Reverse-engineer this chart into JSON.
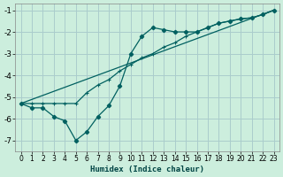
{
  "xlabel": "Humidex (Indice chaleur)",
  "bg_color": "#cceedd",
  "grid_color": "#aacccc",
  "line_color": "#006060",
  "xlim": [
    -0.5,
    23.5
  ],
  "ylim": [
    -7.5,
    -0.7
  ],
  "yticks": [
    -7,
    -6,
    -5,
    -4,
    -3,
    -2,
    -1
  ],
  "xticks": [
    0,
    1,
    2,
    3,
    4,
    5,
    6,
    7,
    8,
    9,
    10,
    11,
    12,
    13,
    14,
    15,
    16,
    17,
    18,
    19,
    20,
    21,
    22,
    23
  ],
  "line1_x": [
    0,
    1,
    2,
    3,
    4,
    5,
    6,
    7,
    8,
    9,
    10,
    11,
    12,
    13,
    14,
    15,
    16,
    17,
    18,
    19,
    20,
    21,
    22,
    23
  ],
  "line1_y": [
    -5.3,
    -5.5,
    -5.5,
    -5.9,
    -6.1,
    -7.0,
    -6.6,
    -5.9,
    -5.4,
    -4.5,
    -3.0,
    -2.2,
    -1.8,
    -1.9,
    -2.0,
    -2.0,
    -2.0,
    -1.8,
    -1.6,
    -1.5,
    -1.4,
    -1.35,
    -1.2,
    -1.0
  ],
  "line2_x": [
    0,
    1,
    2,
    3,
    4,
    5,
    6,
    7,
    8,
    9,
    10,
    11,
    12,
    13,
    14,
    15,
    16,
    17,
    18,
    19,
    20,
    21,
    22,
    23
  ],
  "line2_y": [
    -5.3,
    -5.3,
    -5.3,
    -5.3,
    -5.3,
    -5.3,
    -4.8,
    -4.45,
    -4.2,
    -3.8,
    -3.5,
    -3.2,
    -3.0,
    -2.7,
    -2.5,
    -2.2,
    -2.0,
    -1.8,
    -1.6,
    -1.5,
    -1.4,
    -1.35,
    -1.2,
    -1.0
  ],
  "line3_x": [
    0,
    23
  ],
  "line3_y": [
    -5.3,
    -1.0
  ]
}
